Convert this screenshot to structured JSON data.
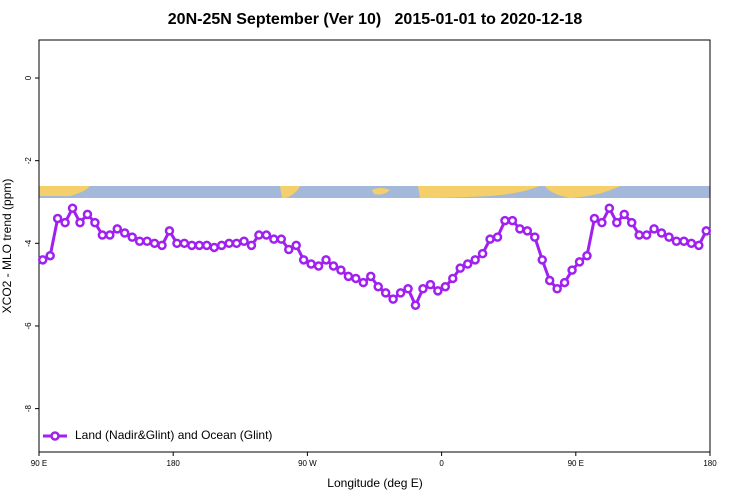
{
  "chart_data": {
    "type": "line",
    "title": "20N-25N September (Ver 10)   2015-01-01 to 2020-12-18",
    "xlabel": "Longitude (deg E)",
    "ylabel": "XCO2 - MLO trend (ppm)",
    "xlim": [
      90,
      540
    ],
    "xticks": [
      {
        "value": 90,
        "label": "90 E"
      },
      {
        "value": 180,
        "label": "180"
      },
      {
        "value": 270,
        "label": "90 W"
      },
      {
        "value": 360,
        "label": "0"
      },
      {
        "value": 450,
        "label": "90 E"
      },
      {
        "value": 540,
        "label": "180"
      }
    ],
    "ylim": [
      -9.05,
      0.92
    ],
    "yticks": [
      0,
      -2,
      -4,
      -6,
      -8
    ],
    "grid": false,
    "legend": "bottom-left",
    "x": [
      92.5,
      97.5,
      102.5,
      107.5,
      112.5,
      117.5,
      122.5,
      127.5,
      132.5,
      137.5,
      142.5,
      147.5,
      152.5,
      157.5,
      162.5,
      167.5,
      172.5,
      177.5,
      182.5,
      187.5,
      192.5,
      197.5,
      202.5,
      207.5,
      212.5,
      217.5,
      222.5,
      227.5,
      232.5,
      237.5,
      242.5,
      247.5,
      252.5,
      257.5,
      262.5,
      267.5,
      272.5,
      277.5,
      282.5,
      287.5,
      292.5,
      297.5,
      302.5,
      307.5,
      312.5,
      317.5,
      322.5,
      327.5,
      332.5,
      337.5,
      342.5,
      347.5,
      352.5,
      357.5,
      362.5,
      367.5,
      372.5,
      377.5,
      382.5,
      387.5,
      392.5,
      397.5,
      402.5,
      407.5,
      412.5,
      417.5,
      422.5,
      427.5,
      432.5,
      437.5,
      442.5,
      447.5,
      452.5,
      457.5,
      462.5,
      467.5,
      472.5,
      477.5,
      482.5,
      487.5,
      492.5,
      497.5,
      502.5,
      507.5,
      512.5,
      517.5,
      522.5,
      527.5,
      532.5,
      537.5
    ],
    "series": [
      {
        "name": "Land (Nadir&Glint) and Ocean (Glint)",
        "color": "#a020f0",
        "values": [
          -4.4,
          -4.3,
          -3.4,
          -3.5,
          -3.15,
          -3.5,
          -3.3,
          -3.5,
          -3.8,
          -3.8,
          -3.65,
          -3.75,
          -3.85,
          -3.95,
          -3.95,
          -4.0,
          -4.05,
          -3.7,
          -4.0,
          -4.0,
          -4.05,
          -4.05,
          -4.05,
          -4.1,
          -4.05,
          -4.0,
          -4.0,
          -3.95,
          -4.05,
          -3.8,
          -3.8,
          -3.9,
          -3.9,
          -4.15,
          -4.05,
          -4.4,
          -4.5,
          -4.55,
          -4.4,
          -4.55,
          -4.65,
          -4.8,
          -4.85,
          -4.95,
          -4.8,
          -5.05,
          -5.2,
          -5.35,
          -5.2,
          -5.1,
          -5.5,
          -5.1,
          -5.0,
          -5.15,
          -5.05,
          -4.85,
          -4.6,
          -4.5,
          -4.4,
          -4.25,
          -3.9,
          -3.85,
          -3.45,
          -3.45,
          -3.65,
          -3.7,
          -3.85,
          -4.4,
          -4.9,
          -5.1,
          -4.95,
          -4.65,
          -4.45,
          -4.3,
          -3.4,
          -3.5,
          -3.15,
          -3.5,
          -3.3,
          -3.5,
          -3.8,
          -3.8,
          -3.65,
          -3.75,
          -3.85,
          -3.95,
          -3.95,
          -4.0,
          -4.05,
          -3.7
        ]
      }
    ]
  }
}
